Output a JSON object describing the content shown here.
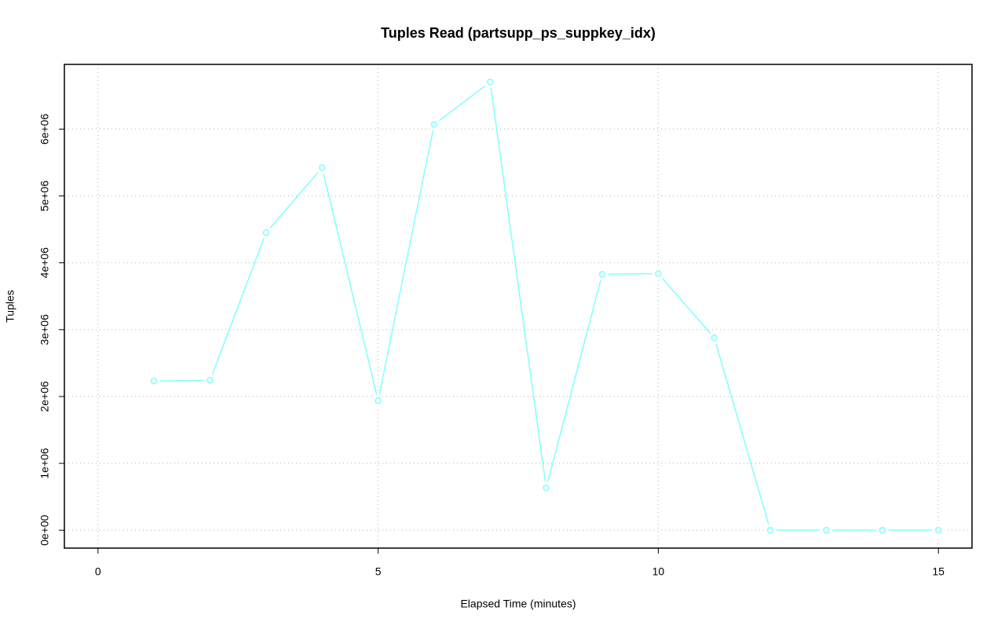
{
  "chart_data": {
    "type": "line",
    "title": "Tuples Read (partsupp_ps_suppkey_idx)",
    "x_label": "Elapsed Time (minutes)",
    "y_label": "Tuples",
    "x": [
      1,
      2,
      3,
      4,
      5,
      6,
      7,
      8,
      9,
      10,
      11,
      12,
      13,
      14,
      15
    ],
    "values": [
      2231000,
      2243000,
      4450000,
      5424000,
      1937000,
      6070000,
      6704000,
      634000,
      3828000,
      3839000,
      2877000,
      0,
      0,
      0,
      0
    ],
    "color": "#80ffff",
    "xlim": [
      -0.6,
      15.6
    ],
    "xticks": [
      0,
      5,
      10,
      15
    ],
    "ylim": [
      -268000,
      6968000
    ],
    "yticks": [
      {
        "value": 0,
        "label": "0e+00"
      },
      {
        "value": 1000000,
        "label": "1e+06"
      },
      {
        "value": 2000000,
        "label": "2e+06"
      },
      {
        "value": 3000000,
        "label": "3e+06"
      },
      {
        "value": 4000000,
        "label": "4e+06"
      },
      {
        "value": 5000000,
        "label": "5e+06"
      },
      {
        "value": 6000000,
        "label": "6e+06"
      }
    ],
    "grid": true
  }
}
